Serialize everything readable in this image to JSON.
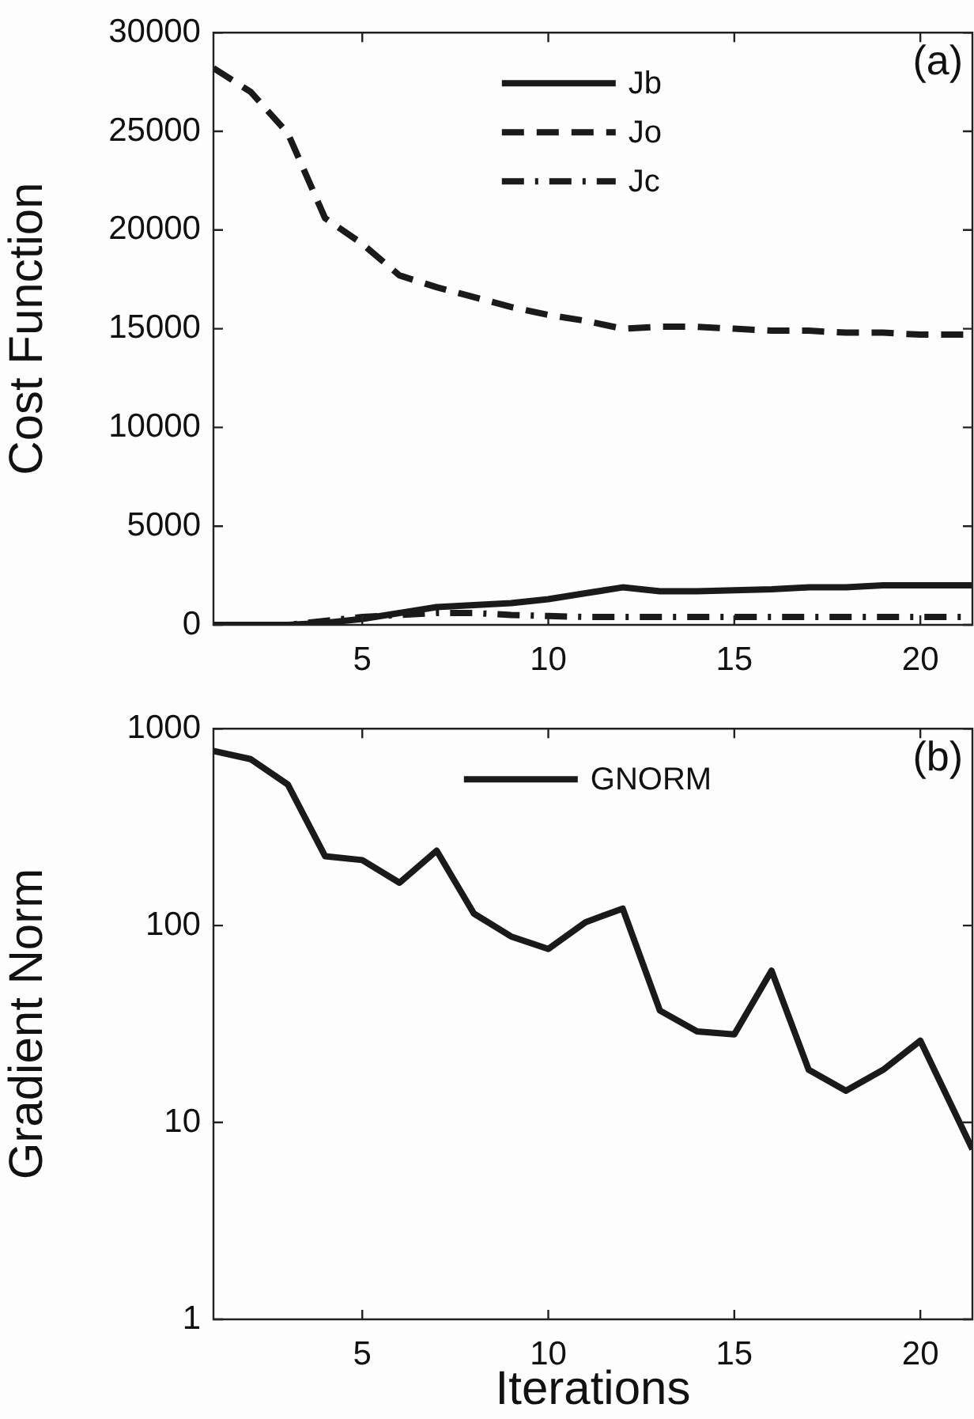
{
  "chart_data": [
    {
      "type": "line",
      "ylabel": "Cost Function",
      "annotations": [
        "(a)"
      ],
      "legend": "top",
      "x": [
        1,
        2,
        3,
        4,
        5,
        6,
        7,
        8,
        9,
        10,
        11,
        12,
        13,
        14,
        15,
        16,
        17,
        18,
        19,
        20,
        21,
        21.4
      ],
      "xlim": [
        1,
        21.4
      ],
      "xticks": [
        5,
        10,
        15,
        20
      ],
      "ylim": [
        0,
        30000
      ],
      "yticks": [
        0,
        5000,
        10000,
        15000,
        20000,
        25000,
        30000
      ],
      "series": [
        {
          "name": "Jb",
          "color": "#1a1a1a",
          "line_style": "solid",
          "values": [
            0,
            0,
            0,
            100,
            300,
            600,
            900,
            1000,
            1100,
            1300,
            1600,
            1900,
            1700,
            1700,
            1750,
            1800,
            1900,
            1900,
            2000,
            2000,
            2000,
            2000
          ]
        },
        {
          "name": "Jo",
          "color": "#1a1a1a",
          "line_style": "dashed",
          "values": [
            28200,
            27000,
            24900,
            20600,
            19300,
            17700,
            17100,
            16600,
            16100,
            15700,
            15400,
            15000,
            15100,
            15100,
            15000,
            14900,
            14900,
            14800,
            14800,
            14700,
            14700,
            14700
          ]
        },
        {
          "name": "Jc",
          "color": "#1a1a1a",
          "line_style": "dashdot",
          "values": [
            0,
            0,
            0,
            200,
            400,
            500,
            600,
            600,
            500,
            450,
            400,
            400,
            400,
            400,
            400,
            400,
            400,
            400,
            400,
            400,
            400,
            400
          ]
        }
      ]
    },
    {
      "type": "line",
      "ylabel": "Gradient Norm",
      "xlabel": "Iterations",
      "annotations": [
        "(b)"
      ],
      "legend": "top",
      "log": "y",
      "x": [
        1,
        2,
        3,
        4,
        5,
        6,
        7,
        8,
        9,
        10,
        11,
        12,
        13,
        14,
        15,
        16,
        17,
        18,
        19,
        20,
        21,
        21.4
      ],
      "xlim": [
        1,
        21.4
      ],
      "xticks": [
        5,
        10,
        15,
        20
      ],
      "ylim": [
        1,
        1000
      ],
      "yticks": [
        1,
        10,
        100,
        1000
      ],
      "series": [
        {
          "name": "GNORM",
          "color": "#1a1a1a",
          "line_style": "solid",
          "values": [
            770,
            700,
            520,
            225,
            215,
            165,
            240,
            115,
            88,
            76,
            104,
            122,
            37,
            29,
            28,
            59,
            18.5,
            14.5,
            18.5,
            26,
            10.5,
            7.3
          ]
        }
      ]
    }
  ]
}
